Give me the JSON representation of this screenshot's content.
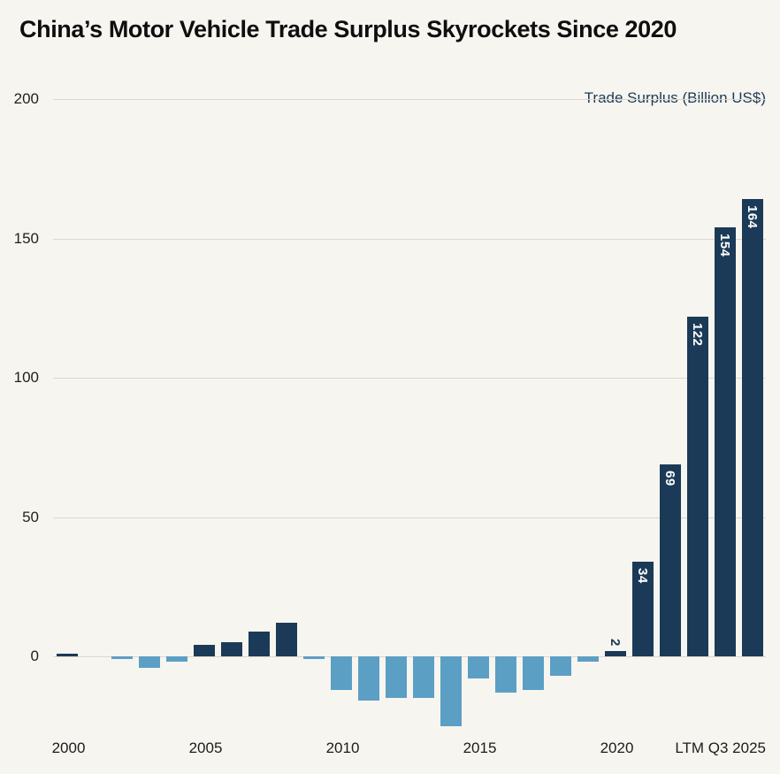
{
  "page": {
    "title": "China’s Motor Vehicle Trade Surplus Skyrockets Since 2020"
  },
  "chart_data": {
    "type": "bar",
    "title": "China’s Motor Vehicle Trade Surplus Skyrockets Since 2020",
    "unit_note": "Trade Surplus (Billion US$)",
    "categories": [
      "2000",
      "2001",
      "2002",
      "2003",
      "2004",
      "2005",
      "2006",
      "2007",
      "2008",
      "2009",
      "2010",
      "2011",
      "2012",
      "2013",
      "2014",
      "2015",
      "2016",
      "2017",
      "2018",
      "2019",
      "2020",
      "2021",
      "2022",
      "2023",
      "2024",
      "LTM Q3 2025"
    ],
    "values": [
      1,
      0,
      -1,
      -4,
      -2,
      4,
      5,
      9,
      12,
      -1,
      -12,
      -16,
      -15,
      -15,
      -25,
      -8,
      -13,
      -12,
      -7,
      -2,
      2,
      34,
      69,
      122,
      154,
      164
    ],
    "bar_labels": [
      "",
      "",
      "",
      "",
      "",
      "",
      "",
      "",
      "",
      "",
      "",
      "",
      "",
      "",
      "",
      "",
      "",
      "",
      "",
      "",
      "2",
      "34",
      "69",
      "122",
      "154",
      "164"
    ],
    "yticks": [
      0,
      50,
      100,
      150,
      200
    ],
    "ylim": [
      -28,
      200
    ],
    "grid": true,
    "legend_position": "top-right",
    "xtick_indices": [
      0,
      5,
      10,
      15,
      20,
      25
    ],
    "xtick_labels": [
      "2000",
      "2005",
      "2010",
      "2015",
      "2020",
      "LTM Q3 2025"
    ],
    "colors": {
      "positive_bar": "#1b3a57",
      "negative_bar": "#5c9fc5",
      "background": "#f7f5ef",
      "gridline": "#dbd7cf",
      "axis_text": "#1c1c1c",
      "inside_label_text": "#ffffff"
    }
  }
}
